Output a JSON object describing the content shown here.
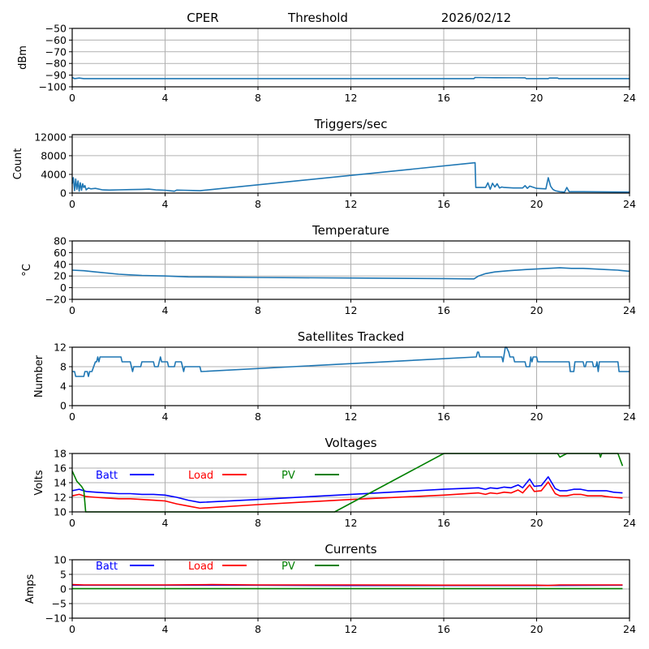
{
  "header": {
    "station": "CPER",
    "mode": "Threshold",
    "date": "2026/02/12"
  },
  "chart_data": [
    {
      "id": "threshold",
      "type": "line",
      "title": "",
      "xlabel": "",
      "ylabel": "dBm",
      "xlim": [
        0,
        24
      ],
      "ylim": [
        -100,
        -50
      ],
      "xticks": [
        0,
        4,
        8,
        12,
        16,
        20,
        24
      ],
      "yticks": [
        -100,
        -90,
        -80,
        -70,
        -60,
        -50
      ],
      "ytick_labels": [
        "−100",
        "−90",
        "−80",
        "−70",
        "−60",
        "−50"
      ],
      "grid": true,
      "series": [
        {
          "name": "dBm",
          "color": "#1f77b4",
          "x": [
            0,
            0.1,
            0.3,
            0.5,
            4,
            8,
            12,
            16,
            17.3,
            17.35,
            18.2,
            19.5,
            19.55,
            20.5,
            20.55,
            20.9,
            20.95,
            24
          ],
          "y": [
            -92,
            -93,
            -92.5,
            -93,
            -93,
            -93,
            -93,
            -93,
            -93,
            -92,
            -92.2,
            -92.3,
            -93,
            -93,
            -92.5,
            -92.5,
            -93,
            -93
          ]
        }
      ]
    },
    {
      "id": "triggers",
      "type": "line",
      "title": "Triggers/sec",
      "xlabel": "",
      "ylabel": "Count",
      "xlim": [
        0,
        24
      ],
      "ylim": [
        0,
        12500
      ],
      "xticks": [
        0,
        4,
        8,
        12,
        16,
        20,
        24
      ],
      "yticks": [
        0,
        4000,
        8000,
        12000
      ],
      "ytick_labels": [
        "0",
        "4000",
        "8000",
        "12000"
      ],
      "grid": true,
      "series": [
        {
          "name": "Count",
          "color": "#1f77b4",
          "x": [
            0,
            0.05,
            0.1,
            0.15,
            0.2,
            0.25,
            0.3,
            0.35,
            0.4,
            0.45,
            0.5,
            0.55,
            0.6,
            0.7,
            0.8,
            1.0,
            1.3,
            1.6,
            2.0,
            2.5,
            3.0,
            3.3,
            3.6,
            4.0,
            4.4,
            4.5,
            4.8,
            5.2,
            5.5,
            17.35,
            17.38,
            17.8,
            17.9,
            18.0,
            18.1,
            18.2,
            18.3,
            18.4,
            18.5,
            18.6,
            19.0,
            19.4,
            19.5,
            19.6,
            19.7,
            20.0,
            20.4,
            20.5,
            20.6,
            20.7,
            20.8,
            21.0,
            21.2,
            21.3,
            21.4,
            22.0,
            23.0,
            24.0
          ],
          "y": [
            2000,
            3300,
            500,
            3000,
            800,
            2600,
            400,
            2200,
            600,
            2000,
            1200,
            1600,
            700,
            1100,
            900,
            1000,
            700,
            650,
            700,
            750,
            800,
            850,
            700,
            600,
            400,
            650,
            600,
            550,
            500,
            6500,
            1200,
            1200,
            2200,
            800,
            2100,
            1300,
            2000,
            1100,
            1300,
            1200,
            1100,
            1100,
            1600,
            1000,
            1500,
            1000,
            900,
            3300,
            1500,
            800,
            500,
            300,
            200,
            1200,
            300,
            300,
            250,
            200
          ]
        }
      ]
    },
    {
      "id": "temperature",
      "type": "line",
      "title": "Temperature",
      "xlabel": "",
      "ylabel": "°C",
      "xlim": [
        0,
        24
      ],
      "ylim": [
        -20,
        80
      ],
      "xticks": [
        0,
        4,
        8,
        12,
        16,
        20,
        24
      ],
      "yticks": [
        -20,
        0,
        20,
        40,
        60,
        80
      ],
      "ytick_labels": [
        "−20",
        "0",
        "20",
        "40",
        "60",
        "80"
      ],
      "grid": true,
      "series": [
        {
          "name": "Temperature",
          "color": "#1f77b4",
          "x": [
            0,
            0.5,
            1.0,
            1.5,
            2.0,
            2.5,
            3.0,
            4.0,
            5.0,
            8.0,
            12.0,
            16.0,
            17.3,
            17.5,
            17.8,
            18.2,
            18.8,
            19.5,
            20.0,
            20.5,
            21.0,
            21.5,
            22.0,
            22.5,
            23.0,
            23.5,
            24.0
          ],
          "y": [
            30,
            29,
            27,
            25,
            23,
            22,
            21,
            20,
            18.5,
            17.5,
            16.5,
            15.5,
            15,
            20,
            24,
            27,
            29,
            31,
            32,
            33,
            34,
            33,
            33,
            32,
            31,
            30,
            28
          ]
        }
      ]
    },
    {
      "id": "satellites",
      "type": "line",
      "title": "Satellites Tracked",
      "xlabel": "",
      "ylabel": "Number",
      "xlim": [
        0,
        24
      ],
      "ylim": [
        0,
        12
      ],
      "xticks": [
        0,
        4,
        8,
        12,
        16,
        20,
        24
      ],
      "yticks": [
        0,
        4,
        8,
        12
      ],
      "ytick_labels": [
        "0",
        "4",
        "8",
        "12"
      ],
      "grid": true,
      "series": [
        {
          "name": "Satellites",
          "color": "#1f77b4",
          "x": [
            0,
            0.1,
            0.15,
            0.5,
            0.55,
            0.65,
            0.7,
            0.75,
            0.8,
            0.85,
            1.0,
            1.05,
            1.1,
            1.15,
            1.2,
            1.3,
            1.35,
            2.1,
            2.15,
            2.5,
            2.55,
            2.6,
            2.65,
            2.95,
            3.0,
            3.5,
            3.55,
            3.7,
            3.75,
            3.8,
            3.85,
            4.1,
            4.15,
            4.4,
            4.45,
            4.7,
            4.75,
            4.8,
            4.85,
            5.5,
            5.55,
            17.4,
            17.45,
            17.5,
            17.55,
            18.5,
            18.55,
            18.65,
            18.7,
            18.8,
            18.85,
            19.0,
            19.05,
            19.5,
            19.55,
            19.7,
            19.75,
            19.8,
            19.85,
            20.0,
            20.05,
            21.4,
            21.45,
            21.6,
            21.65,
            22.0,
            22.05,
            22.1,
            22.15,
            22.4,
            22.45,
            22.55,
            22.6,
            22.65,
            22.7,
            23.5,
            23.55,
            24
          ],
          "y": [
            7,
            7,
            6,
            6,
            7,
            7,
            6,
            7,
            7,
            7,
            9,
            9,
            10,
            9,
            10,
            10,
            10,
            10,
            9,
            9,
            8,
            7,
            8,
            8,
            9,
            9,
            8,
            8,
            9,
            10,
            9,
            9,
            8,
            8,
            9,
            9,
            8,
            7,
            8,
            8,
            7,
            10,
            11,
            11,
            10,
            10,
            9,
            12,
            12,
            11,
            10,
            10,
            9,
            9,
            8,
            8,
            10,
            9,
            10,
            10,
            9,
            9,
            7,
            7,
            9,
            9,
            8,
            8,
            9,
            9,
            8,
            8,
            9,
            7,
            9,
            9,
            7,
            7
          ]
        }
      ]
    },
    {
      "id": "voltages",
      "type": "line",
      "title": "Voltages",
      "xlabel": "",
      "ylabel": "Volts",
      "xlim": [
        0,
        24
      ],
      "ylim": [
        10,
        18
      ],
      "xticks": [
        0,
        4,
        8,
        12,
        16,
        20,
        24
      ],
      "yticks": [
        10,
        12,
        14,
        16,
        18
      ],
      "ytick_labels": [
        "10",
        "12",
        "14",
        "16",
        "18"
      ],
      "grid": true,
      "legend": [
        {
          "label": "Batt",
          "color": "#0000ff"
        },
        {
          "label": "Load",
          "color": "#ff0000"
        },
        {
          "label": "PV",
          "color": "#008000"
        }
      ],
      "legend_position": "top-left",
      "series": [
        {
          "name": "Batt",
          "color": "#0000ff",
          "x": [
            0,
            0.3,
            0.6,
            1.0,
            1.5,
            2.0,
            2.5,
            3.0,
            3.5,
            4.0,
            4.5,
            5.0,
            5.5,
            8.0,
            12.0,
            16.0,
            17.5,
            17.8,
            18.0,
            18.3,
            18.6,
            18.9,
            19.2,
            19.4,
            19.7,
            19.9,
            20.2,
            20.5,
            20.8,
            21.0,
            21.3,
            21.6,
            21.9,
            22.2,
            22.5,
            22.8,
            23.0,
            23.3,
            23.7
          ],
          "y": [
            12.9,
            13.1,
            12.8,
            12.7,
            12.6,
            12.5,
            12.5,
            12.4,
            12.4,
            12.3,
            12.0,
            11.6,
            11.3,
            11.7,
            12.4,
            13.1,
            13.3,
            13.1,
            13.3,
            13.2,
            13.4,
            13.3,
            13.7,
            13.3,
            14.5,
            13.5,
            13.6,
            14.8,
            13.2,
            12.9,
            12.9,
            13.1,
            13.1,
            12.9,
            12.9,
            12.9,
            12.9,
            12.7,
            12.6
          ]
        },
        {
          "name": "Load",
          "color": "#ff0000",
          "x": [
            0,
            0.3,
            0.6,
            1.0,
            1.5,
            2.0,
            2.5,
            3.0,
            3.5,
            4.0,
            4.5,
            5.0,
            5.5,
            8.0,
            12.0,
            16.0,
            17.5,
            17.8,
            18.0,
            18.3,
            18.6,
            18.9,
            19.2,
            19.4,
            19.7,
            19.9,
            20.2,
            20.5,
            20.8,
            21.0,
            21.3,
            21.6,
            21.9,
            22.2,
            22.5,
            22.8,
            23.0,
            23.3,
            23.7
          ],
          "y": [
            12.2,
            12.4,
            12.1,
            12.0,
            11.9,
            11.8,
            11.8,
            11.7,
            11.6,
            11.5,
            11.1,
            10.8,
            10.5,
            11.0,
            11.7,
            12.3,
            12.6,
            12.4,
            12.6,
            12.5,
            12.7,
            12.6,
            13.0,
            12.6,
            13.7,
            12.8,
            12.9,
            14.1,
            12.5,
            12.2,
            12.2,
            12.4,
            12.4,
            12.2,
            12.2,
            12.2,
            12.1,
            12.0,
            11.9
          ]
        },
        {
          "name": "PV",
          "color": "#008000",
          "x": [
            0,
            0.2,
            0.4,
            0.5,
            0.58,
            11.3,
            16.0,
            20.9,
            21.0,
            21.3,
            22.7,
            22.75,
            22.8,
            23.5,
            23.7
          ],
          "y": [
            15.6,
            14.2,
            13.5,
            13.0,
            9.5,
            10.0,
            18.2,
            18.2,
            17.5,
            18.2,
            18.2,
            17.5,
            18.2,
            18.2,
            16.3
          ]
        }
      ]
    },
    {
      "id": "currents",
      "type": "line",
      "title": "Currents",
      "xlabel": "",
      "ylabel": "Amps",
      "xlim": [
        0,
        24
      ],
      "ylim": [
        -10,
        10
      ],
      "xticks": [
        0,
        4,
        8,
        12,
        16,
        20,
        24
      ],
      "yticks": [
        -10,
        -5,
        0,
        5,
        10
      ],
      "ytick_labels": [
        "−10",
        "−5",
        "0",
        "5",
        "10"
      ],
      "grid": true,
      "legend": [
        {
          "label": "Batt",
          "color": "#0000ff"
        },
        {
          "label": "Load",
          "color": "#ff0000"
        },
        {
          "label": "PV",
          "color": "#008000"
        }
      ],
      "legend_position": "top-left",
      "series": [
        {
          "name": "Batt",
          "color": "#0000ff",
          "x": [
            0,
            4,
            8,
            12,
            16,
            20,
            23.7
          ],
          "y": [
            1.3,
            1.3,
            1.3,
            1.2,
            1.2,
            1.2,
            1.3
          ]
        },
        {
          "name": "Load",
          "color": "#ff0000",
          "x": [
            0,
            0.5,
            4,
            6,
            8,
            12,
            16,
            18,
            20,
            20.5,
            21,
            23.7
          ],
          "y": [
            1.5,
            1.4,
            1.4,
            1.5,
            1.4,
            1.4,
            1.3,
            1.3,
            1.3,
            1.2,
            1.4,
            1.4
          ]
        },
        {
          "name": "PV",
          "color": "#008000",
          "x": [
            0,
            23.7
          ],
          "y": [
            0.1,
            0.1
          ]
        }
      ]
    }
  ]
}
